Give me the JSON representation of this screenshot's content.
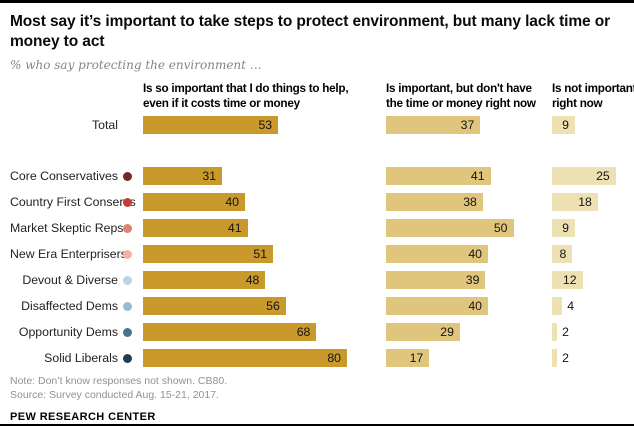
{
  "header": {
    "title": "Most say it’s important to take steps to protect environment, but many lack time or money to act",
    "subtitle": "% who say protecting the environment …"
  },
  "headers_display": [
    "Is so important that I do things to help,\neven if it costs time or money",
    "Is important, but don't have\nthe time or money right now",
    "Is not important\nright now"
  ],
  "chart_data": {
    "type": "bar",
    "orientation": "horizontal",
    "title": "Most say it’s important to take steps to protect environment, but many lack time or money to act",
    "subtitle": "% who say protecting the environment …",
    "value_unit": "%",
    "value_range": [
      0,
      100
    ],
    "categories": [
      "Total",
      "Core Conservatives",
      "Country First Conservs",
      "Market Skeptic Reps",
      "New Era Enterprisers",
      "Devout & Diverse",
      "Disaffected Dems",
      "Opportunity Dems",
      "Solid Liberals"
    ],
    "category_dot_colors": [
      null,
      "#6e2c24",
      "#c33d33",
      "#e17f70",
      "#f2b3a6",
      "#bcd3e1",
      "#94bcd3",
      "#47758f",
      "#1e3e53"
    ],
    "series": [
      {
        "name": "Is so important that I do things to help, even if it costs time or money",
        "color": "#c9992c",
        "values": [
          53,
          31,
          40,
          41,
          51,
          48,
          56,
          68,
          80
        ]
      },
      {
        "name": "Is important, but don't have the time or money right now",
        "color": "#e0c57c",
        "values": [
          37,
          41,
          38,
          50,
          40,
          39,
          40,
          29,
          17
        ]
      },
      {
        "name": "Is not important right now",
        "color": "#ede0b2",
        "values": [
          9,
          25,
          18,
          9,
          8,
          12,
          4,
          2,
          2
        ]
      }
    ]
  },
  "footer": {
    "note": "Note: Don’t know responses not shown. CB80.",
    "source": "Source: Survey conducted Aug. 15-21, 2017.",
    "brand": "PEW RESEARCH CENTER"
  }
}
